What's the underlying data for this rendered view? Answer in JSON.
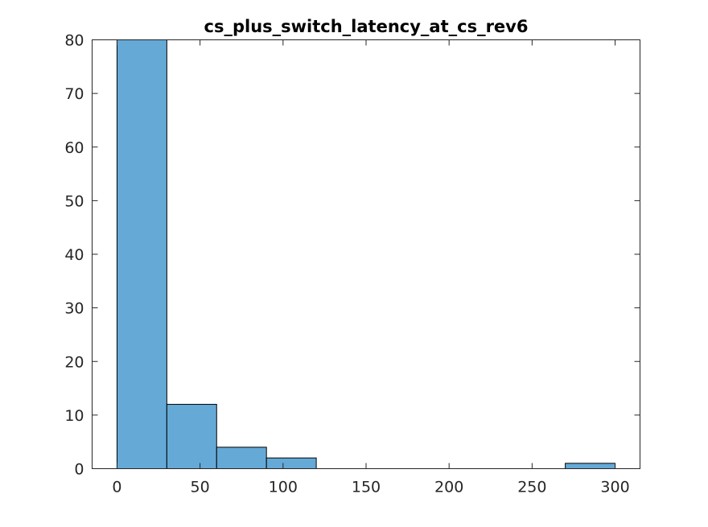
{
  "chart_data": {
    "type": "bar",
    "title": "cs_plus_switch_latency_at_cs_rev6",
    "xlabel": "",
    "ylabel": "",
    "xlim": [
      -15,
      315
    ],
    "ylim": [
      0,
      80
    ],
    "bin_edges": [
      0,
      30,
      60,
      90,
      120,
      150,
      180,
      210,
      240,
      270,
      300
    ],
    "counts": [
      80,
      12,
      4,
      2,
      0,
      0,
      0,
      0,
      0,
      1
    ],
    "xticks": [
      0,
      50,
      100,
      150,
      200,
      250,
      300
    ],
    "yticks": [
      0,
      10,
      20,
      30,
      40,
      50,
      60,
      70,
      80
    ],
    "grid": false,
    "bar_color": "#65a9d7",
    "edge_color": "#000000"
  }
}
